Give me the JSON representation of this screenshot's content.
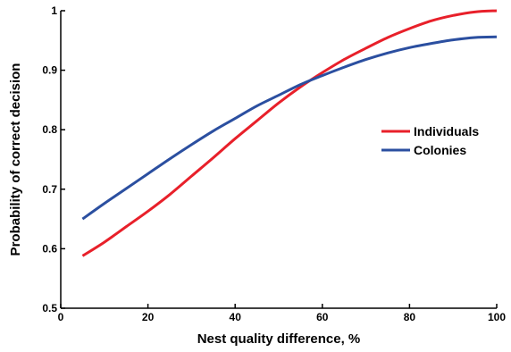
{
  "chart_data": {
    "type": "line",
    "title": "",
    "xlabel": "Nest quality difference, %",
    "ylabel": "Probability of correct decision",
    "xlim": [
      0,
      100
    ],
    "ylim": [
      0.5,
      1.0
    ],
    "x_ticks": [
      0,
      20,
      40,
      60,
      80,
      100
    ],
    "y_ticks": [
      0.5,
      0.6,
      0.7,
      0.8,
      0.9,
      1.0
    ],
    "x_tick_labels": [
      "0",
      "20",
      "40",
      "60",
      "80",
      "100"
    ],
    "y_tick_labels": [
      "0.5",
      "0.6",
      "0.7",
      "0.8",
      "0.9",
      "1"
    ],
    "grid": false,
    "legend_position": "center-right",
    "series": [
      {
        "name": "Individuals",
        "color": "#e8202a",
        "x": [
          5,
          10,
          15,
          20,
          25,
          30,
          35,
          40,
          45,
          50,
          55,
          60,
          65,
          70,
          75,
          80,
          85,
          90,
          95,
          100
        ],
        "y": [
          0.588,
          0.611,
          0.637,
          0.663,
          0.691,
          0.722,
          0.753,
          0.785,
          0.815,
          0.845,
          0.872,
          0.896,
          0.918,
          0.937,
          0.955,
          0.97,
          0.983,
          0.992,
          0.998,
          1.0
        ]
      },
      {
        "name": "Colonies",
        "color": "#2b4fa0",
        "x": [
          5,
          10,
          15,
          20,
          25,
          30,
          35,
          40,
          45,
          50,
          55,
          60,
          65,
          70,
          75,
          80,
          85,
          90,
          95,
          100
        ],
        "y": [
          0.65,
          0.676,
          0.701,
          0.726,
          0.751,
          0.775,
          0.798,
          0.819,
          0.84,
          0.858,
          0.876,
          0.891,
          0.905,
          0.918,
          0.929,
          0.938,
          0.945,
          0.951,
          0.955,
          0.956
        ]
      }
    ]
  }
}
